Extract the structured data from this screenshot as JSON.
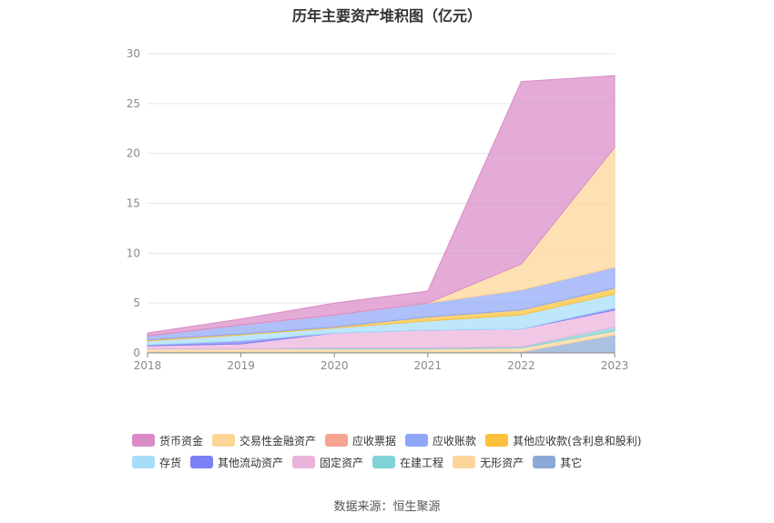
{
  "chart_data": {
    "type": "area",
    "stacked": true,
    "title": "历年主要资产堆积图（亿元）",
    "x": [
      "2018",
      "2019",
      "2020",
      "2021",
      "2022",
      "2023"
    ],
    "ylim": [
      0,
      30
    ],
    "yticks": [
      0,
      5,
      10,
      15,
      20,
      25,
      30
    ],
    "grid": true,
    "legend_position": "bottom",
    "series": [
      {
        "name": "其它",
        "color": "#8aa9d6",
        "values": [
          0.1,
          0.1,
          0.1,
          0.1,
          0.1,
          1.8
        ]
      },
      {
        "name": "无形资产",
        "color": "#fcd59a",
        "values": [
          0.3,
          0.3,
          0.3,
          0.3,
          0.4,
          0.4
        ]
      },
      {
        "name": "在建工程",
        "color": "#7fd3d6",
        "values": [
          0.0,
          0.0,
          0.1,
          0.1,
          0.1,
          0.4
        ]
      },
      {
        "name": "固定资产",
        "color": "#eab3dc",
        "values": [
          0.3,
          0.5,
          1.5,
          1.8,
          1.8,
          1.7
        ]
      },
      {
        "name": "其他流动资产",
        "color": "#7b7ff5",
        "values": [
          0.1,
          0.3,
          0.0,
          0.0,
          0.0,
          0.2
        ]
      },
      {
        "name": "存货",
        "color": "#a6def9",
        "values": [
          0.4,
          0.6,
          0.5,
          0.9,
          1.4,
          1.4
        ]
      },
      {
        "name": "其他应收款(含利息和股利)",
        "color": "#fbc13a",
        "values": [
          0.1,
          0.1,
          0.1,
          0.4,
          0.5,
          0.6
        ]
      },
      {
        "name": "应收账款",
        "color": "#8fa6f7",
        "values": [
          0.4,
          0.9,
          1.2,
          1.4,
          2.0,
          2.1
        ]
      },
      {
        "name": "应收票据",
        "color": "#f6a392",
        "values": [
          0.0,
          0.0,
          0.0,
          0.0,
          0.0,
          0.0
        ]
      },
      {
        "name": "交易性金融资产",
        "color": "#fdd596",
        "values": [
          0.0,
          0.0,
          0.0,
          0.0,
          2.6,
          12.0
        ]
      },
      {
        "name": "货币资金",
        "color": "#d98bc6",
        "values": [
          0.3,
          0.6,
          1.2,
          1.2,
          18.3,
          7.2
        ]
      }
    ]
  },
  "legend": {
    "row1": [
      {
        "label": "货币资金",
        "color": "#d98bc6"
      },
      {
        "label": "交易性金融资产",
        "color": "#fdd596"
      },
      {
        "label": "应收票据",
        "color": "#f6a392"
      },
      {
        "label": "应收账款",
        "color": "#8fa6f7"
      },
      {
        "label": "其他应收款(含利息和股利)",
        "color": "#fbc13a"
      }
    ],
    "row2": [
      {
        "label": "存货",
        "color": "#a6def9"
      },
      {
        "label": "其他流动资产",
        "color": "#7b7ff5"
      },
      {
        "label": "固定资产",
        "color": "#eab3dc"
      },
      {
        "label": "在建工程",
        "color": "#7fd3d6"
      },
      {
        "label": "无形资产",
        "color": "#fcd59a"
      },
      {
        "label": "其它",
        "color": "#8aa9d6"
      }
    ]
  },
  "source": "数据来源：恒生聚源"
}
